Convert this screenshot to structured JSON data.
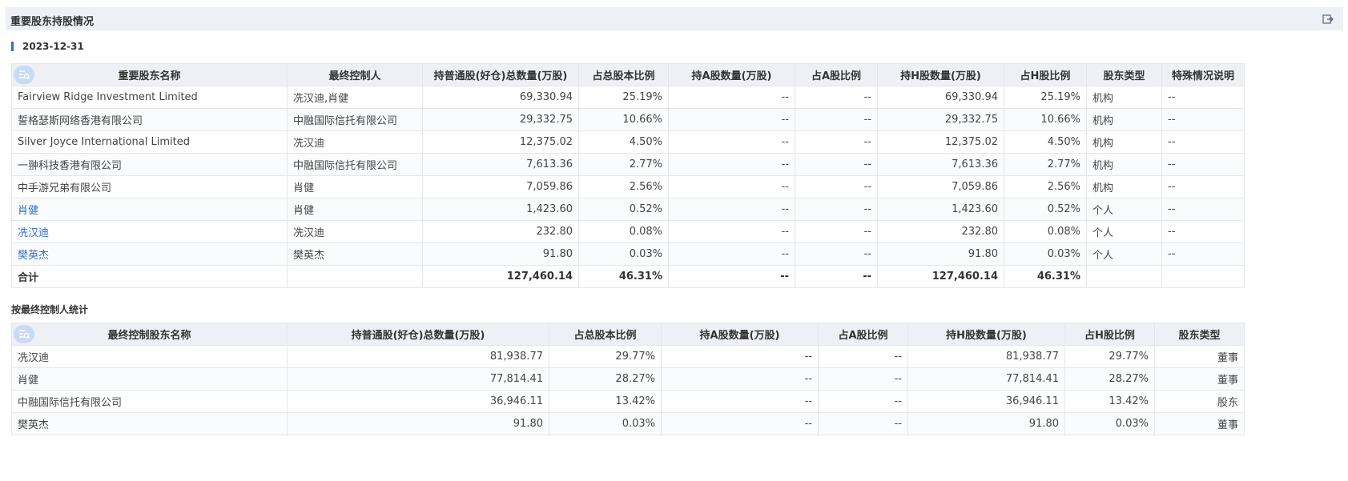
{
  "panel": {
    "title": "重要股东持股情况",
    "export_icon": "export-icon",
    "date": "2023-12-31",
    "sub_title": "按最终控制人统计"
  },
  "table1": {
    "headers": [
      "重要股东名称",
      "最终控制人",
      "持普通股(好仓)总数量(万股)",
      "占总股本比例",
      "持A股数量(万股)",
      "占A股比例",
      "持H股数量(万股)",
      "占H股比例",
      "股东类型",
      "特殊情况说明"
    ],
    "rows": [
      {
        "name": "Fairview Ridge Investment Limited",
        "controller": "冼汉迪,肖健",
        "total": "69,330.94",
        "ratio": "25.19%",
        "a_qty": "--",
        "a_ratio": "--",
        "h_qty": "69,330.94",
        "h_ratio": "25.19%",
        "type": "机构",
        "note": "--",
        "link": false
      },
      {
        "name": "誓格瑟斯网络香港有限公司",
        "controller": "中融国际信托有限公司",
        "total": "29,332.75",
        "ratio": "10.66%",
        "a_qty": "--",
        "a_ratio": "--",
        "h_qty": "29,332.75",
        "h_ratio": "10.66%",
        "type": "机构",
        "note": "--",
        "link": false
      },
      {
        "name": "Silver Joyce International Limited",
        "controller": "冼汉迪",
        "total": "12,375.02",
        "ratio": "4.50%",
        "a_qty": "--",
        "a_ratio": "--",
        "h_qty": "12,375.02",
        "h_ratio": "4.50%",
        "type": "机构",
        "note": "--",
        "link": false
      },
      {
        "name": "一翀科技香港有限公司",
        "controller": "中融国际信托有限公司",
        "total": "7,613.36",
        "ratio": "2.77%",
        "a_qty": "--",
        "a_ratio": "--",
        "h_qty": "7,613.36",
        "h_ratio": "2.77%",
        "type": "机构",
        "note": "--",
        "link": false
      },
      {
        "name": "中手游兄弟有限公司",
        "controller": "肖健",
        "total": "7,059.86",
        "ratio": "2.56%",
        "a_qty": "--",
        "a_ratio": "--",
        "h_qty": "7,059.86",
        "h_ratio": "2.56%",
        "type": "机构",
        "note": "--",
        "link": false
      },
      {
        "name": "肖健",
        "controller": "肖健",
        "total": "1,423.60",
        "ratio": "0.52%",
        "a_qty": "--",
        "a_ratio": "--",
        "h_qty": "1,423.60",
        "h_ratio": "0.52%",
        "type": "个人",
        "note": "--",
        "link": true
      },
      {
        "name": "冼汉迪",
        "controller": "冼汉迪",
        "total": "232.80",
        "ratio": "0.08%",
        "a_qty": "--",
        "a_ratio": "--",
        "h_qty": "232.80",
        "h_ratio": "0.08%",
        "type": "个人",
        "note": "--",
        "link": true
      },
      {
        "name": "樊英杰",
        "controller": "樊英杰",
        "total": "91.80",
        "ratio": "0.03%",
        "a_qty": "--",
        "a_ratio": "--",
        "h_qty": "91.80",
        "h_ratio": "0.03%",
        "type": "个人",
        "note": "--",
        "link": true
      }
    ],
    "total": {
      "label": "合计",
      "total": "127,460.14",
      "ratio": "46.31%",
      "a_qty": "--",
      "a_ratio": "--",
      "h_qty": "127,460.14",
      "h_ratio": "46.31%"
    }
  },
  "table2": {
    "headers": [
      "最终控制股东名称",
      "持普通股(好仓)总数量(万股)",
      "占总股本比例",
      "持A股数量(万股)",
      "占A股比例",
      "持H股数量(万股)",
      "占H股比例",
      "股东类型"
    ],
    "rows": [
      {
        "name": "冼汉迪",
        "total": "81,938.77",
        "ratio": "29.77%",
        "a_qty": "--",
        "a_ratio": "--",
        "h_qty": "81,938.77",
        "h_ratio": "29.77%",
        "type": "董事"
      },
      {
        "name": "肖健",
        "total": "77,814.41",
        "ratio": "28.27%",
        "a_qty": "--",
        "a_ratio": "--",
        "h_qty": "77,814.41",
        "h_ratio": "28.27%",
        "type": "董事"
      },
      {
        "name": "中融国际信托有限公司",
        "total": "36,946.11",
        "ratio": "13.42%",
        "a_qty": "--",
        "a_ratio": "--",
        "h_qty": "36,946.11",
        "h_ratio": "13.42%",
        "type": "股东"
      },
      {
        "name": "樊英杰",
        "total": "91.80",
        "ratio": "0.03%",
        "a_qty": "--",
        "a_ratio": "--",
        "h_qty": "91.80",
        "h_ratio": "0.03%",
        "type": "董事"
      }
    ]
  },
  "colors": {
    "accent": "#2f6fd1",
    "header_bg": "#eef0f6",
    "titlebar_bg": "#eef0f5",
    "badge_bg": "#c9daf5"
  }
}
